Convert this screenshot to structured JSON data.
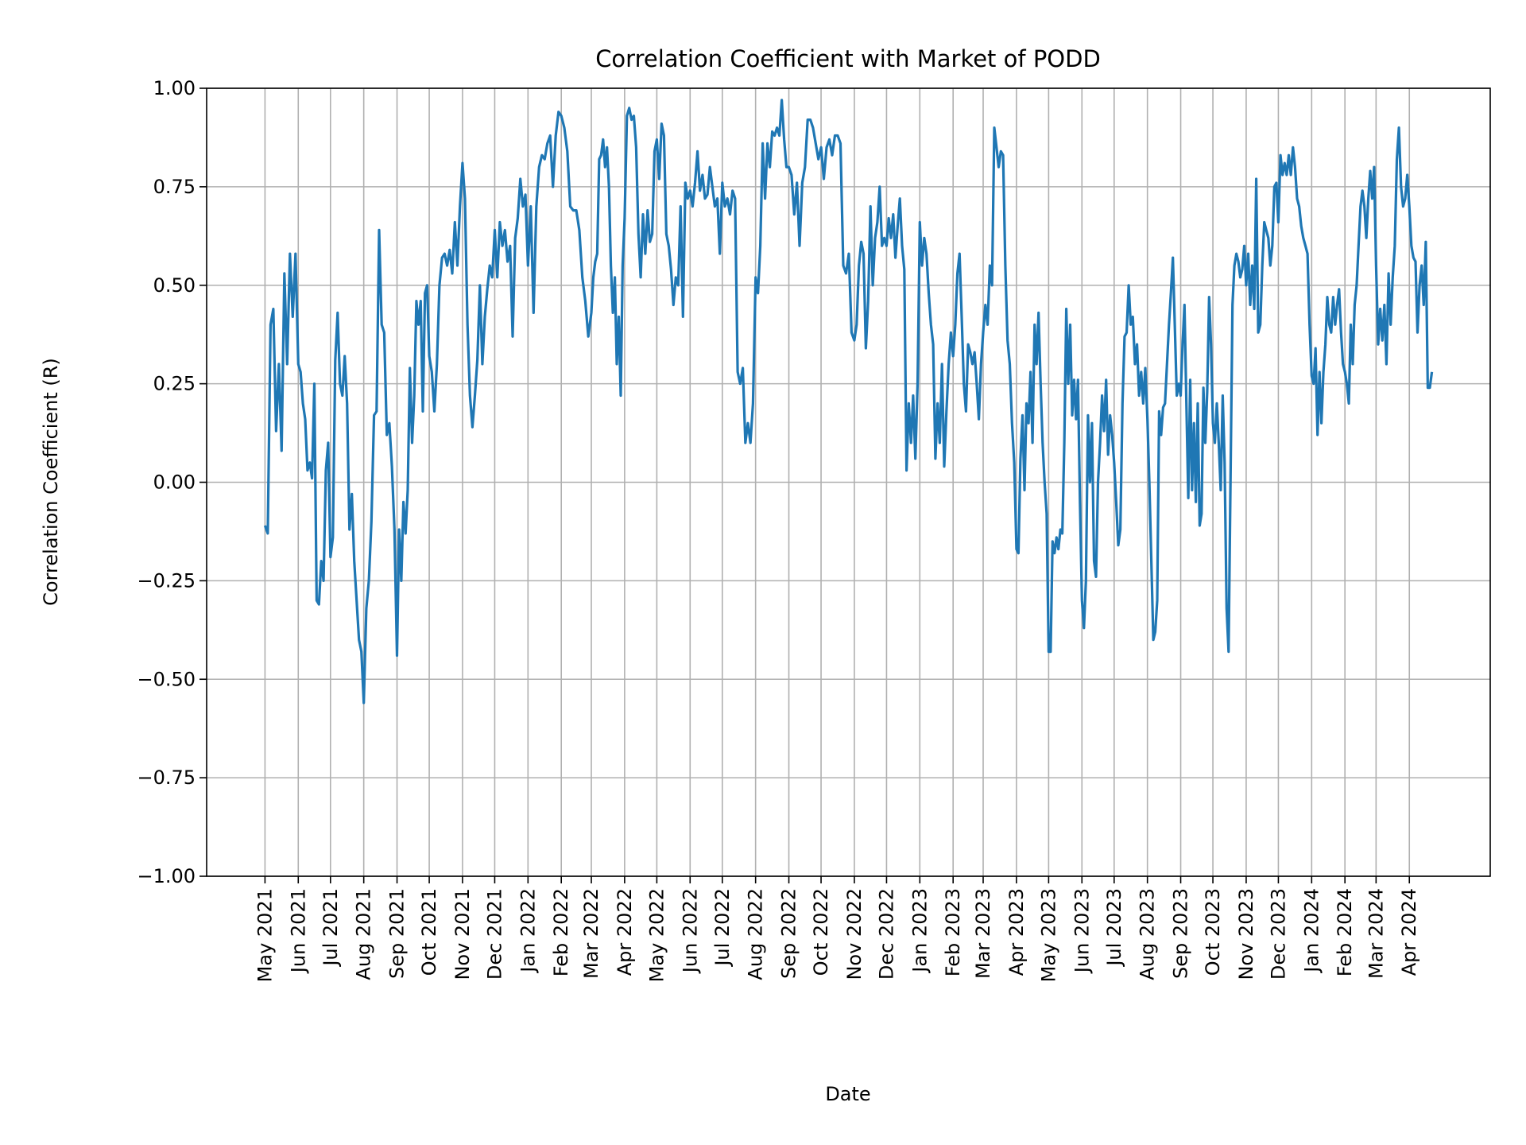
{
  "chart_data": {
    "type": "line",
    "title": "Correlation Coefficient with Market of PODD",
    "xlabel": "Date",
    "ylabel": "Correlation Coefficient (R)",
    "ylim": [
      -1.0,
      1.0
    ],
    "yticks": [
      "1.00",
      "0.75",
      "0.50",
      "0.25",
      "0.00",
      "−0.25",
      "−0.50",
      "−0.75",
      "−1.00"
    ],
    "ytick_values": [
      1.0,
      0.75,
      0.5,
      0.25,
      0.0,
      -0.25,
      -0.5,
      -0.75,
      -1.0
    ],
    "xticks": [
      "May 2021",
      "Jun 2021",
      "Jul 2021",
      "Aug 2021",
      "Sep 2021",
      "Oct 2021",
      "Nov 2021",
      "Dec 2021",
      "Jan 2022",
      "Feb 2022",
      "Mar 2022",
      "Apr 2022",
      "May 2022",
      "Jun 2022",
      "Jul 2022",
      "Aug 2022",
      "Sep 2022",
      "Oct 2022",
      "Nov 2022",
      "Dec 2022",
      "Jan 2023",
      "Feb 2023",
      "Mar 2023",
      "Apr 2023",
      "May 2023",
      "Jun 2023",
      "Jul 2023",
      "Aug 2023",
      "Sep 2023",
      "Oct 2023",
      "Nov 2023",
      "Dec 2023",
      "Jan 2024",
      "Feb 2024",
      "Mar 2024",
      "Apr 2024"
    ],
    "grid": true,
    "line_color": "#1f77b4",
    "start_date": "2021-05-01",
    "end_date": "2024-04-22",
    "series_by_month": [
      {
        "month": "2021-05",
        "values": [
          -0.11,
          -0.13,
          0.4,
          0.44,
          0.13,
          0.3,
          0.08,
          0.53,
          0.3,
          0.58,
          0.42,
          0.58
        ]
      },
      {
        "month": "2021-06",
        "values": [
          0.3,
          0.28,
          0.2,
          0.16,
          0.03,
          0.05,
          0.01,
          0.25,
          -0.3,
          -0.31,
          -0.2,
          -0.25,
          0.03,
          0.1
        ]
      },
      {
        "month": "2021-07",
        "values": [
          -0.19,
          -0.14,
          0.31,
          0.43,
          0.25,
          0.22,
          0.32,
          0.2,
          -0.12,
          -0.03,
          -0.2,
          -0.3,
          -0.4,
          -0.43
        ]
      },
      {
        "month": "2021-08",
        "values": [
          -0.56,
          -0.32,
          -0.25,
          -0.1,
          0.17,
          0.18,
          0.64,
          0.4,
          0.38,
          0.12,
          0.15,
          0.04,
          -0.12
        ]
      },
      {
        "month": "2021-09",
        "values": [
          -0.44,
          -0.12,
          -0.25,
          -0.05,
          -0.13,
          -0.02,
          0.29,
          0.1,
          0.22,
          0.46,
          0.4,
          0.46,
          0.18,
          0.48,
          0.5
        ]
      },
      {
        "month": "2021-10",
        "values": [
          0.32,
          0.28,
          0.18,
          0.3,
          0.5,
          0.57,
          0.58,
          0.55,
          0.59,
          0.53,
          0.66,
          0.55,
          0.7
        ]
      },
      {
        "month": "2021-11",
        "values": [
          0.81,
          0.72,
          0.4,
          0.22,
          0.14,
          0.22,
          0.31,
          0.5,
          0.3,
          0.42,
          0.49,
          0.55,
          0.52
        ]
      },
      {
        "month": "2021-12",
        "values": [
          0.64,
          0.52,
          0.66,
          0.6,
          0.64,
          0.56,
          0.6,
          0.37,
          0.62,
          0.67,
          0.77,
          0.7,
          0.73
        ]
      },
      {
        "month": "2022-01",
        "values": [
          0.55,
          0.7,
          0.43,
          0.7,
          0.8,
          0.83,
          0.82,
          0.86,
          0.88,
          0.75,
          0.88,
          0.94
        ]
      },
      {
        "month": "2022-02",
        "values": [
          0.93,
          0.9,
          0.84,
          0.7,
          0.69,
          0.69,
          0.64,
          0.52,
          0.46,
          0.37
        ]
      },
      {
        "month": "2022-03",
        "values": [
          0.43,
          0.52,
          0.56,
          0.58,
          0.82,
          0.83,
          0.87,
          0.8,
          0.85,
          0.75,
          0.55,
          0.43,
          0.52,
          0.3,
          0.42,
          0.22,
          0.55
        ]
      },
      {
        "month": "2022-04",
        "values": [
          0.67,
          0.93,
          0.95,
          0.92,
          0.93,
          0.85,
          0.63,
          0.52,
          0.68,
          0.58,
          0.69,
          0.61,
          0.63,
          0.84
        ]
      },
      {
        "month": "2022-05",
        "values": [
          0.87,
          0.77,
          0.91,
          0.88,
          0.63,
          0.6,
          0.54,
          0.45,
          0.52,
          0.5,
          0.7,
          0.42,
          0.76,
          0.72
        ]
      },
      {
        "month": "2022-06",
        "values": [
          0.74,
          0.7,
          0.76,
          0.84,
          0.74,
          0.78,
          0.72,
          0.73,
          0.8,
          0.75,
          0.7,
          0.72,
          0.58
        ]
      },
      {
        "month": "2022-07",
        "values": [
          0.76,
          0.7,
          0.72,
          0.68,
          0.74,
          0.72,
          0.28,
          0.25,
          0.29,
          0.1,
          0.15,
          0.1,
          0.2
        ]
      },
      {
        "month": "2022-08",
        "values": [
          0.52,
          0.48,
          0.6,
          0.86,
          0.72,
          0.86,
          0.8,
          0.89,
          0.88,
          0.9,
          0.88,
          0.97,
          0.87,
          0.8
        ]
      },
      {
        "month": "2022-09",
        "values": [
          0.8,
          0.78,
          0.68,
          0.76,
          0.6,
          0.76,
          0.8,
          0.92,
          0.92,
          0.9,
          0.86,
          0.82
        ]
      },
      {
        "month": "2022-10",
        "values": [
          0.85,
          0.77,
          0.85,
          0.87,
          0.83,
          0.88,
          0.88,
          0.86,
          0.55,
          0.53,
          0.58,
          0.38
        ]
      },
      {
        "month": "2022-11",
        "values": [
          0.36,
          0.4,
          0.55,
          0.61,
          0.58,
          0.34,
          0.46,
          0.7,
          0.5,
          0.62,
          0.66,
          0.75,
          0.6,
          0.62
        ]
      },
      {
        "month": "2022-12",
        "values": [
          0.6,
          0.67,
          0.62,
          0.68,
          0.57,
          0.65,
          0.72,
          0.6,
          0.54,
          0.03,
          0.2,
          0.1,
          0.22,
          0.06,
          0.25
        ]
      },
      {
        "month": "2023-01",
        "values": [
          0.66,
          0.55,
          0.62,
          0.58,
          0.48,
          0.4,
          0.35,
          0.06,
          0.2,
          0.1,
          0.3,
          0.04,
          0.18,
          0.3,
          0.38
        ]
      },
      {
        "month": "2023-02",
        "values": [
          0.32,
          0.4,
          0.53,
          0.58,
          0.42,
          0.25,
          0.18,
          0.35,
          0.33,
          0.3,
          0.33,
          0.25,
          0.16,
          0.3
        ]
      },
      {
        "month": "2023-03",
        "values": [
          0.38,
          0.45,
          0.4,
          0.55,
          0.5,
          0.9,
          0.85,
          0.8,
          0.84,
          0.83,
          0.55,
          0.36,
          0.3,
          0.15,
          0.05
        ]
      },
      {
        "month": "2023-04",
        "values": [
          -0.17,
          -0.18,
          0.06,
          0.17,
          -0.02,
          0.2,
          0.15,
          0.28,
          0.1,
          0.4,
          0.3,
          0.43,
          0.25,
          0.1,
          0.0,
          -0.08
        ]
      },
      {
        "month": "2023-05",
        "values": [
          -0.43,
          -0.43,
          -0.15,
          -0.18,
          -0.14,
          -0.17,
          -0.12,
          -0.13,
          0.1,
          0.44,
          0.25,
          0.4,
          0.17,
          0.26,
          0.16,
          0.26,
          -0.05
        ]
      },
      {
        "month": "2023-06",
        "values": [
          -0.3,
          -0.37,
          -0.25,
          0.17,
          0.0,
          0.15,
          -0.2,
          -0.24,
          0.0,
          0.1,
          0.22,
          0.13,
          0.26,
          0.07,
          0.17,
          0.12
        ]
      },
      {
        "month": "2023-07",
        "values": [
          0.05,
          -0.05,
          -0.16,
          -0.12,
          0.2,
          0.37,
          0.38,
          0.5,
          0.4,
          0.42,
          0.3,
          0.35,
          0.22,
          0.28,
          0.2,
          0.29
        ]
      },
      {
        "month": "2023-08",
        "values": [
          0.16,
          0.0,
          -0.2,
          -0.4,
          -0.38,
          -0.3,
          0.18,
          0.12,
          0.19,
          0.2,
          0.3,
          0.4,
          0.48,
          0.57,
          0.4,
          0.22,
          0.25
        ]
      },
      {
        "month": "2023-09",
        "values": [
          0.22,
          0.35,
          0.45,
          0.2,
          -0.04,
          0.26,
          -0.02,
          0.15,
          -0.05,
          0.2,
          -0.11,
          -0.08,
          0.24,
          0.1,
          0.23,
          0.47,
          0.35
        ]
      },
      {
        "month": "2023-10",
        "values": [
          0.15,
          0.1,
          0.2,
          0.1,
          -0.02,
          0.22,
          0.05,
          -0.32,
          -0.43,
          0.0,
          0.45,
          0.55,
          0.58,
          0.56,
          0.52,
          0.54,
          0.6
        ]
      },
      {
        "month": "2023-11",
        "values": [
          0.5,
          0.58,
          0.45,
          0.55,
          0.44,
          0.77,
          0.38,
          0.4,
          0.55,
          0.66,
          0.64,
          0.62,
          0.55,
          0.6,
          0.75,
          0.76
        ]
      },
      {
        "month": "2023-12",
        "values": [
          0.66,
          0.83,
          0.78,
          0.81,
          0.78,
          0.83,
          0.78,
          0.85,
          0.8,
          0.72,
          0.7,
          0.65,
          0.62,
          0.6,
          0.58,
          0.4
        ]
      },
      {
        "month": "2024-01",
        "values": [
          0.27,
          0.25,
          0.34,
          0.12,
          0.28,
          0.15,
          0.28,
          0.35,
          0.47,
          0.4,
          0.38,
          0.47,
          0.4,
          0.45,
          0.49,
          0.38,
          0.3
        ]
      },
      {
        "month": "2024-02",
        "values": [
          0.28,
          0.25,
          0.2,
          0.4,
          0.3,
          0.45,
          0.5,
          0.6,
          0.7,
          0.74,
          0.7,
          0.62,
          0.72,
          0.79,
          0.72,
          0.8
        ]
      },
      {
        "month": "2024-03",
        "values": [
          0.55,
          0.35,
          0.44,
          0.36,
          0.45,
          0.3,
          0.53,
          0.4,
          0.52,
          0.6,
          0.82,
          0.9,
          0.75,
          0.7,
          0.72,
          0.78
        ]
      },
      {
        "month": "2024-04",
        "values": [
          0.7,
          0.6,
          0.57,
          0.56,
          0.38,
          0.5,
          0.55,
          0.45,
          0.61,
          0.24,
          0.24,
          0.28
        ]
      }
    ]
  }
}
